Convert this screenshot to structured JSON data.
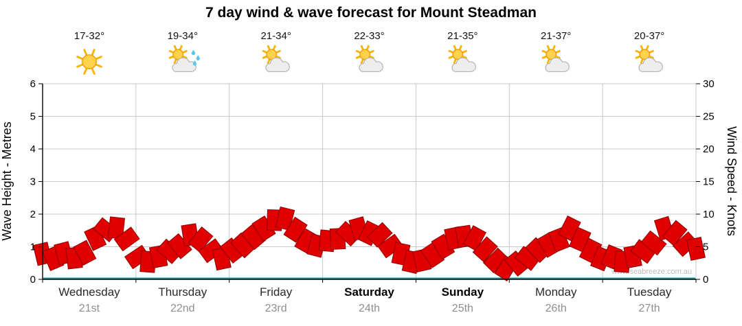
{
  "title": "7 day wind & wave forecast for Mount Steadman",
  "watermark": "www.seabreeze.com.au",
  "days": [
    {
      "name": "Wednesday",
      "date": "21st",
      "temp": "17-32°",
      "icon": "sunny",
      "bold": false
    },
    {
      "name": "Thursday",
      "date": "22nd",
      "temp": "19-34°",
      "icon": "rain-showers",
      "bold": false
    },
    {
      "name": "Friday",
      "date": "23rd",
      "temp": "21-34°",
      "icon": "partly-cloudy",
      "bold": false
    },
    {
      "name": "Saturday",
      "date": "24th",
      "temp": "22-33°",
      "icon": "partly-cloudy",
      "bold": true
    },
    {
      "name": "Sunday",
      "date": "25th",
      "temp": "21-35°",
      "icon": "partly-cloudy",
      "bold": true
    },
    {
      "name": "Monday",
      "date": "26th",
      "temp": "21-37°",
      "icon": "partly-cloudy",
      "bold": false
    },
    {
      "name": "Tuesday",
      "date": "27th",
      "temp": "20-37°",
      "icon": "partly-cloudy",
      "bold": false
    }
  ],
  "chart_data": {
    "type": "line",
    "title": "7 day wind & wave forecast for Mount Steadman",
    "grid": true,
    "left_axis": {
      "label": "Wave Height - Metres",
      "min": 0,
      "max": 6,
      "ticks": [
        0,
        1,
        2,
        3,
        4,
        5,
        6
      ]
    },
    "right_axis": {
      "label": "Wind Speed - Knots",
      "min": 0,
      "max": 30,
      "ticks": [
        0,
        5,
        10,
        15,
        20,
        25,
        30
      ]
    },
    "categories": [
      "Wednesday 21st",
      "Thursday 22nd",
      "Friday 23rd",
      "Saturday 24th",
      "Sunday 25th",
      "Monday 26th",
      "Tuesday 27th"
    ],
    "series": [
      {
        "name": "Wind Speed",
        "unit": "knots",
        "axis": "right",
        "color": "#e00000",
        "style": "wind-barb-ribbon",
        "values": [
          3.5,
          3,
          4,
          3.5,
          4.5,
          6,
          7.5,
          8,
          6.5,
          3,
          2.5,
          3.5,
          4.5,
          5.5,
          6.5,
          6,
          4.5,
          3.5,
          4,
          5,
          6.5,
          8,
          9.5,
          9,
          7.5,
          6,
          5.5,
          5.5,
          6,
          7,
          8,
          7.5,
          6.5,
          5,
          4,
          3,
          2.5,
          3.5,
          5,
          6.5,
          7,
          6,
          4.5,
          3,
          2,
          2,
          3,
          4.5,
          5.5,
          6.5,
          7.5,
          6,
          4.5,
          3.5,
          3,
          2.5,
          3.5,
          4.5,
          6,
          7.5,
          7,
          5.5,
          5
        ]
      },
      {
        "name": "Wave Height",
        "unit": "metres",
        "axis": "left",
        "color": "#00a0a0",
        "style": "line",
        "values": [
          0,
          0,
          0,
          0,
          0,
          0,
          0,
          0
        ]
      }
    ]
  },
  "colors": {
    "barb_fill": "#e00000",
    "barb_stroke": "#8f0000",
    "grid": "#c9c9c9",
    "axis": "#000000",
    "wave_line": "#00a0a0",
    "date_text": "#8f8f8f"
  }
}
